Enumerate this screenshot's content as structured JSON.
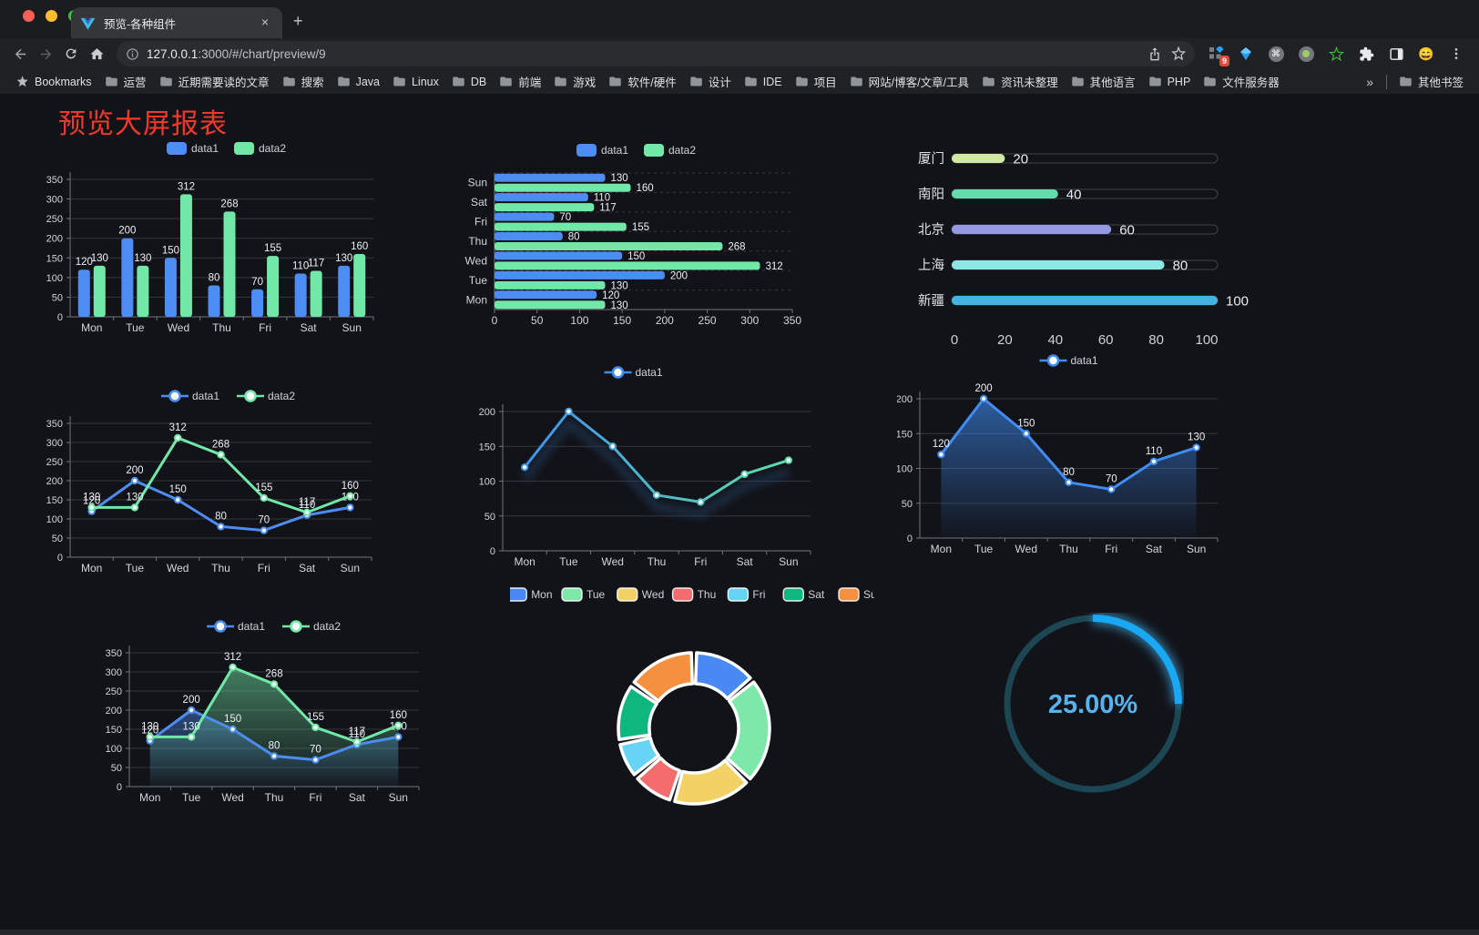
{
  "browser": {
    "tab": {
      "title": "预览-各种组件",
      "close_glyph": "×",
      "new_tab_glyph": "+"
    },
    "url": {
      "host": "127.0.0.1",
      "rest": ":3000/#/chart/preview/9"
    },
    "extensions_badge": "9",
    "bookmarks": {
      "label": "Bookmarks",
      "folders": [
        "运营",
        "近期需要读的文章",
        "搜索",
        "Java",
        "Linux",
        "DB",
        "前端",
        "游戏",
        "软件/硬件",
        "设计",
        "IDE",
        "项目",
        "网站/博客/文章/工具",
        "资讯未整理",
        "其他语言",
        "PHP",
        "文件服务器"
      ],
      "overflow_glyph": "»",
      "other_bookmarks": "其他书签"
    }
  },
  "page": {
    "title": "预览大屏报表"
  },
  "colors": {
    "series_blue": "#4d8df2",
    "series_green": "#71e8a7",
    "gauge_blue": "#18a8f4",
    "gauge_track": "#1c4653",
    "title_red": "#f0392b"
  },
  "chart_data": [
    {
      "type": "bar",
      "categories": [
        "Mon",
        "Tue",
        "Wed",
        "Thu",
        "Fri",
        "Sat",
        "Sun"
      ],
      "series": [
        {
          "name": "data1",
          "color": "#4d8df2",
          "values": [
            120,
            200,
            150,
            80,
            70,
            110,
            130
          ]
        },
        {
          "name": "data2",
          "color": "#71e8a7",
          "values": [
            130,
            130,
            312,
            268,
            155,
            117,
            160
          ]
        }
      ],
      "ylim": [
        0,
        350
      ],
      "ytick_step": 50,
      "legend_position": "top",
      "grid": true
    },
    {
      "type": "bar-horizontal",
      "categories": [
        "Mon",
        "Tue",
        "Wed",
        "Thu",
        "Fri",
        "Sat",
        "Sun"
      ],
      "display_order_top_to_bottom": [
        "Sun",
        "Sat",
        "Fri",
        "Thu",
        "Wed",
        "Tue",
        "Mon"
      ],
      "series": [
        {
          "name": "data1",
          "color": "#4d8df2",
          "values": [
            120,
            200,
            150,
            80,
            70,
            110,
            130
          ]
        },
        {
          "name": "data2",
          "color": "#71e8a7",
          "values": [
            130,
            130,
            312,
            268,
            155,
            117,
            160
          ]
        }
      ],
      "xlim": [
        0,
        350
      ],
      "xtick_step": 50,
      "legend_position": "top",
      "grid": true
    },
    {
      "type": "progress",
      "rows": [
        {
          "label": "厦门",
          "value": 20,
          "color": "#cfe9a2"
        },
        {
          "label": "南阳",
          "value": 40,
          "color": "#63dcab"
        },
        {
          "label": "北京",
          "value": 60,
          "color": "#9699e2"
        },
        {
          "label": "上海",
          "value": 80,
          "color": "#8be8e2"
        },
        {
          "label": "新疆",
          "value": 100,
          "color": "#41b4e4"
        }
      ],
      "xticks": [
        0,
        20,
        40,
        60,
        80,
        100
      ],
      "xlim": [
        0,
        100
      ]
    },
    {
      "type": "line",
      "categories": [
        "Mon",
        "Tue",
        "Wed",
        "Thu",
        "Fri",
        "Sat",
        "Sun"
      ],
      "series": [
        {
          "name": "data1",
          "color": "#4d8df2",
          "values": [
            120,
            200,
            150,
            80,
            70,
            110,
            130
          ]
        },
        {
          "name": "data2",
          "color": "#71e8a7",
          "values": [
            130,
            130,
            312,
            268,
            155,
            117,
            160
          ]
        }
      ],
      "ylim": [
        0,
        350
      ],
      "ytick_step": 50,
      "legend_position": "top",
      "point_labels": true
    },
    {
      "type": "line",
      "categories": [
        "Mon",
        "Tue",
        "Wed",
        "Thu",
        "Fri",
        "Sat",
        "Sun"
      ],
      "series": [
        {
          "name": "data1",
          "color_start": "#3e8cf0",
          "color_end": "#5fe3a4",
          "color": "#3e8cf0",
          "values": [
            120,
            200,
            150,
            80,
            70,
            110,
            130
          ]
        }
      ],
      "ylim": [
        0,
        200
      ],
      "ytick_step": 50,
      "legend_position": "top",
      "point_labels": false
    },
    {
      "type": "area",
      "categories": [
        "Mon",
        "Tue",
        "Wed",
        "Thu",
        "Fri",
        "Sat",
        "Sun"
      ],
      "series": [
        {
          "name": "data1",
          "color": "#3f8df5",
          "values": [
            120,
            200,
            150,
            80,
            70,
            110,
            130
          ]
        }
      ],
      "ylim": [
        0,
        200
      ],
      "ytick_step": 50,
      "legend_position": "top",
      "point_labels": true
    },
    {
      "type": "area",
      "categories": [
        "Mon",
        "Tue",
        "Wed",
        "Thu",
        "Fri",
        "Sat",
        "Sun"
      ],
      "series": [
        {
          "name": "data1",
          "color": "#4d8df2",
          "values": [
            120,
            200,
            150,
            80,
            70,
            110,
            130
          ]
        },
        {
          "name": "data2",
          "color": "#71e8a7",
          "values": [
            130,
            130,
            312,
            268,
            155,
            117,
            160
          ]
        }
      ],
      "ylim": [
        0,
        350
      ],
      "ytick_step": 50,
      "legend_position": "top",
      "point_labels": true
    },
    {
      "type": "pie",
      "donut": true,
      "items": [
        {
          "name": "Mon",
          "value": 120,
          "color": "#4889f4"
        },
        {
          "name": "Tue",
          "value": 200,
          "color": "#7ee8a8"
        },
        {
          "name": "Wed",
          "value": 150,
          "color": "#f2d264"
        },
        {
          "name": "Thu",
          "value": 80,
          "color": "#f56c6c"
        },
        {
          "name": "Fri",
          "value": 70,
          "color": "#67d4f5"
        },
        {
          "name": "Sat",
          "value": 110,
          "color": "#0fb77f"
        },
        {
          "name": "Sun",
          "value": 130,
          "color": "#f59040"
        }
      ],
      "legend_position": "top"
    },
    {
      "type": "gauge",
      "value": 25,
      "max": 100,
      "label": "25.00%",
      "color": "#18a8f4",
      "track_color": "#1c4653",
      "text_color": "#57b2ee"
    }
  ]
}
